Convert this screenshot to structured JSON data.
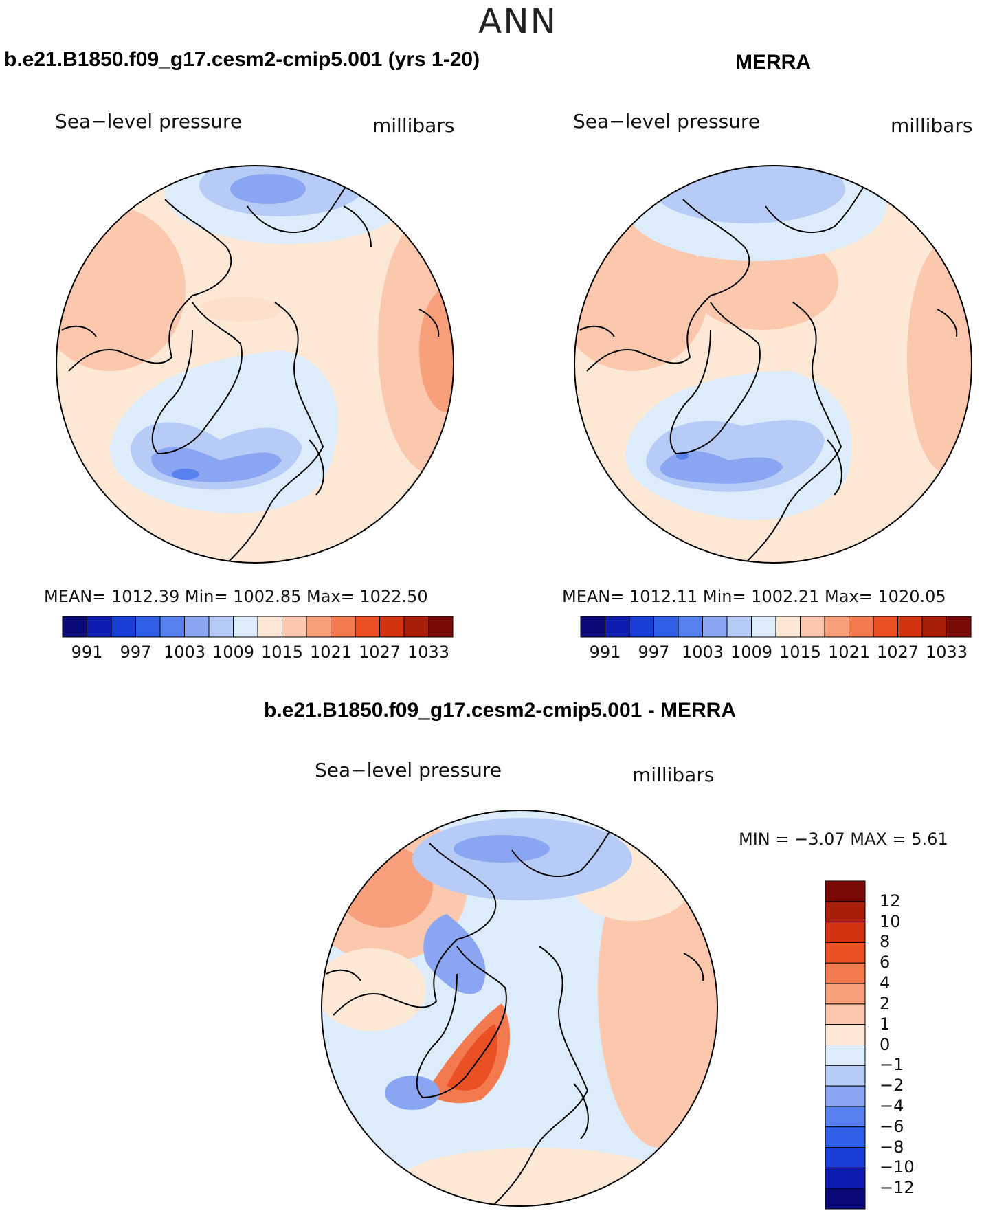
{
  "title": "ANN",
  "panels": {
    "model": {
      "title": "b.e21.B1850.f09_g17.cesm2-cmip5.001 (yrs 1-20)",
      "variable": "Sea−level pressure",
      "units": "millibars",
      "stats": "MEAN=  1012.39    Min=  1002.85    Max=  1022.50"
    },
    "obs": {
      "title": "MERRA",
      "variable": "Sea−level pressure",
      "units": "millibars",
      "stats": "MEAN=  1012.11    Min=  1002.21    Max=  1020.05"
    },
    "diff": {
      "title": "b.e21.B1850.f09_g17.cesm2-cmip5.001 - MERRA",
      "variable": "Sea−level pressure",
      "units": "millibars",
      "stats": "MIN =    −3.07  MAX =     5.61"
    }
  },
  "colorbar_abs": {
    "ticks": [
      "991",
      "997",
      "1003",
      "1009",
      "1015",
      "1021",
      "1027",
      "1033"
    ],
    "colors": [
      "#0a0a78",
      "#0c1db0",
      "#1a3ed8",
      "#3060e8",
      "#5880ee",
      "#8aa6f2",
      "#b6ccf6",
      "#dcecfb",
      "#fde8d6",
      "#fbc8ae",
      "#f8a07c",
      "#f37a4e",
      "#eb5024",
      "#d23412",
      "#a81e08",
      "#7a0a06"
    ]
  },
  "colorbar_diff": {
    "ticks": [
      "12",
      "10",
      "8",
      "6",
      "4",
      "2",
      "1",
      "0",
      "−1",
      "−2",
      "−4",
      "−6",
      "−8",
      "−10",
      "−12"
    ],
    "colors": [
      "#7a0a06",
      "#a81e08",
      "#d23412",
      "#eb5024",
      "#f37a4e",
      "#f8a07c",
      "#fbc8ae",
      "#fde8d6",
      "#dcecfb",
      "#b6ccf6",
      "#8aa6f2",
      "#5880ee",
      "#3060e8",
      "#1a3ed8",
      "#0c1db0",
      "#0a0a78"
    ]
  }
}
